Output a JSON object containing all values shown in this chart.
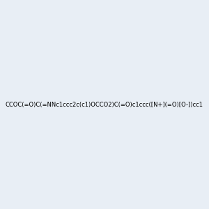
{
  "smiles": "CCOC(=O)C(=NNc1ccc2c(c1)OCCO2)C(=O)c1ccc([N+](=O)[O-])cc1",
  "background_color": "#e8eef5",
  "bond_color": "#000000",
  "atom_colors": {
    "N": "#0000ff",
    "O": "#ff0000",
    "C": "#000000",
    "H": "#808080"
  },
  "figsize": [
    3.0,
    3.0
  ],
  "dpi": 100,
  "title": ""
}
